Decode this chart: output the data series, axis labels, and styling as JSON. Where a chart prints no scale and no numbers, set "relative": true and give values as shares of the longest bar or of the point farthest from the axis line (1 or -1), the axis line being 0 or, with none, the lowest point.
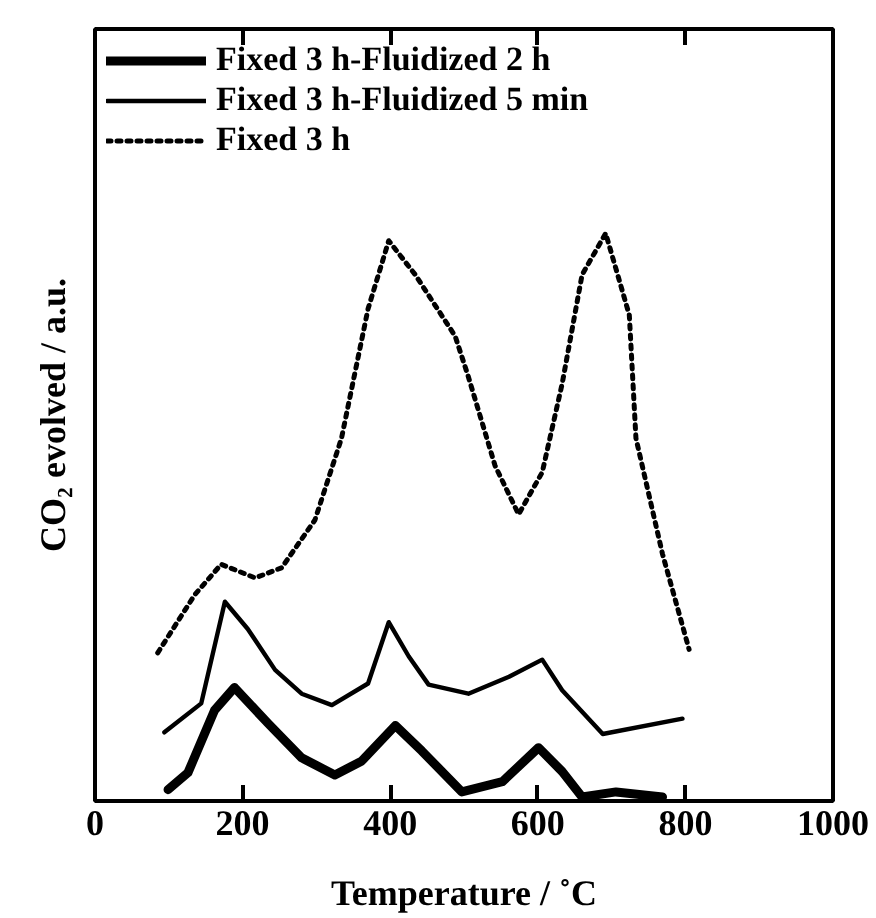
{
  "chart_data": {
    "type": "line",
    "xlabel": "Temperature / ˚C",
    "ylabel": "CO₂ evolved / a.u.",
    "relative": true,
    "xlim": [
      0,
      1000
    ],
    "xticks": [
      0,
      200,
      400,
      600,
      800,
      1000
    ],
    "legend": "top left",
    "grid": false,
    "series": [
      {
        "name": "Fixed 3 h-Fluidized 2 h",
        "color": "#000000",
        "line_style": "solid",
        "x": [
          99,
          126,
          162,
          189,
          235,
          280,
          325,
          361,
          407,
          443,
          497,
          552,
          601,
          633,
          660,
          706,
          769
        ],
        "values": [
          0.02,
          0.05,
          0.16,
          0.2,
          0.136,
          0.076,
          0.046,
          0.07,
          0.133,
          0.088,
          0.016,
          0.034,
          0.094,
          0.052,
          0.007,
          0.016,
          0.007
        ]
      },
      {
        "name": "Fixed 3 h-Fluidized 5 min",
        "color": "#000000",
        "line_style": "solid",
        "x": [
          94,
          144,
          176,
          207,
          244,
          280,
          321,
          370,
          398,
          425,
          452,
          506,
          561,
          606,
          633,
          688,
          796
        ],
        "values": [
          0.121,
          0.172,
          0.351,
          0.303,
          0.231,
          0.189,
          0.169,
          0.207,
          0.315,
          0.255,
          0.205,
          0.189,
          0.219,
          0.249,
          0.195,
          0.118,
          0.145
        ]
      },
      {
        "name": "Fixed 3 h",
        "color": "#000000",
        "line_style": "dotted",
        "x": [
          85,
          135,
          171,
          217,
          253,
          298,
          334,
          370,
          398,
          434,
          488,
          506,
          542,
          574,
          606,
          633,
          660,
          692,
          724,
          733,
          769,
          805
        ],
        "values": [
          0.261,
          0.363,
          0.417,
          0.393,
          0.411,
          0.495,
          0.639,
          0.867,
          0.987,
          0.927,
          0.819,
          0.747,
          0.591,
          0.505,
          0.579,
          0.735,
          0.927,
          1.0,
          0.856,
          0.639,
          0.435,
          0.267
        ]
      }
    ]
  }
}
